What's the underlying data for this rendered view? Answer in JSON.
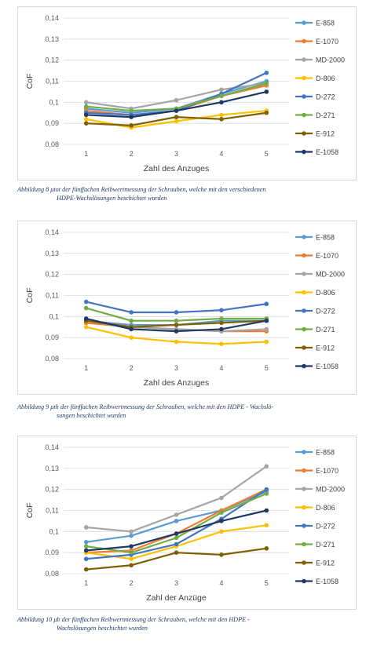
{
  "series_styles": [
    {
      "name": "E-858",
      "color": "#5b9bd5"
    },
    {
      "name": "E-1070",
      "color": "#ed7d31"
    },
    {
      "name": "MD-2000",
      "color": "#a5a5a5"
    },
    {
      "name": "D-806",
      "color": "#ffc000"
    },
    {
      "name": "D-272",
      "color": "#4472c4"
    },
    {
      "name": "D-271",
      "color": "#70ad47"
    },
    {
      "name": "E-912",
      "color": "#7f6000"
    },
    {
      "name": "E-1058",
      "color": "#203864"
    }
  ],
  "chart_data": [
    {
      "type": "line",
      "title": "",
      "xlabel": "Zahl des Anzuges",
      "ylabel": "CoF",
      "x": [
        1,
        2,
        3,
        4,
        5
      ],
      "ylim": [
        0.08,
        0.14
      ],
      "yticks": [
        "0,08",
        "0,09",
        "0,1",
        "0,11",
        "0,12",
        "0,13",
        "0,14"
      ],
      "legend": "right",
      "grid": true,
      "series": [
        {
          "name": "E-858",
          "values": [
            0.097,
            0.095,
            0.097,
            0.104,
            0.11
          ]
        },
        {
          "name": "E-1070",
          "values": [
            0.096,
            0.094,
            0.096,
            0.103,
            0.108
          ]
        },
        {
          "name": "MD-2000",
          "values": [
            0.1,
            0.097,
            0.101,
            0.106,
            0.109
          ]
        },
        {
          "name": "D-806",
          "values": [
            0.092,
            0.088,
            0.091,
            0.094,
            0.096
          ]
        },
        {
          "name": "D-272",
          "values": [
            0.095,
            0.094,
            0.096,
            0.104,
            0.114
          ]
        },
        {
          "name": "D-271",
          "values": [
            0.098,
            0.096,
            0.097,
            0.103,
            0.109
          ]
        },
        {
          "name": "E-912",
          "values": [
            0.09,
            0.089,
            0.093,
            0.092,
            0.095
          ]
        },
        {
          "name": "E-1058",
          "values": [
            0.094,
            0.093,
            0.096,
            0.1,
            0.105
          ]
        }
      ]
    },
    {
      "type": "line",
      "title": "",
      "xlabel": "Zahl des Anzuges",
      "ylabel": "CoF",
      "x": [
        1,
        2,
        3,
        4,
        5
      ],
      "ylim": [
        0.08,
        0.14
      ],
      "yticks": [
        "0,08",
        "0,09",
        "0,1",
        "0,11",
        "0,12",
        "0,13",
        "0,14"
      ],
      "legend": "right",
      "grid": true,
      "series": [
        {
          "name": "E-858",
          "values": [
            0.098,
            0.096,
            0.096,
            0.098,
            0.098
          ]
        },
        {
          "name": "E-1070",
          "values": [
            0.097,
            0.095,
            0.094,
            0.093,
            0.093
          ]
        },
        {
          "name": "MD-2000",
          "values": [
            0.098,
            0.095,
            0.094,
            0.093,
            0.094
          ]
        },
        {
          "name": "D-806",
          "values": [
            0.095,
            0.09,
            0.088,
            0.087,
            0.088
          ]
        },
        {
          "name": "D-272",
          "values": [
            0.107,
            0.102,
            0.102,
            0.103,
            0.106
          ]
        },
        {
          "name": "D-271",
          "values": [
            0.104,
            0.098,
            0.098,
            0.099,
            0.099
          ]
        },
        {
          "name": "E-912",
          "values": [
            0.098,
            0.095,
            0.096,
            0.097,
            0.098
          ]
        },
        {
          "name": "E-1058",
          "values": [
            0.099,
            0.094,
            0.093,
            0.094,
            0.098
          ]
        }
      ]
    },
    {
      "type": "line",
      "title": "",
      "xlabel": "Zahl der Anzüge",
      "ylabel": "CoF",
      "x": [
        1,
        2,
        3,
        4,
        5
      ],
      "ylim": [
        0.08,
        0.14
      ],
      "yticks": [
        "0,08",
        "0,09",
        "0,1",
        "0,11",
        "0,12",
        "0,13",
        "0,14"
      ],
      "legend": "right",
      "grid": true,
      "series": [
        {
          "name": "E-858",
          "values": [
            0.095,
            0.098,
            0.105,
            0.11,
            0.119
          ]
        },
        {
          "name": "E-1070",
          "values": [
            0.09,
            0.091,
            0.099,
            0.11,
            0.12
          ]
        },
        {
          "name": "MD-2000",
          "values": [
            0.102,
            0.1,
            0.108,
            0.116,
            0.131
          ]
        },
        {
          "name": "D-806",
          "values": [
            0.09,
            0.087,
            0.093,
            0.1,
            0.103
          ]
        },
        {
          "name": "D-272",
          "values": [
            0.087,
            0.089,
            0.094,
            0.106,
            0.12
          ]
        },
        {
          "name": "D-271",
          "values": [
            0.093,
            0.09,
            0.097,
            0.109,
            0.118
          ]
        },
        {
          "name": "E-912",
          "values": [
            0.082,
            0.084,
            0.09,
            0.089,
            0.092
          ]
        },
        {
          "name": "E-1058",
          "values": [
            0.091,
            0.093,
            0.099,
            0.105,
            0.11
          ]
        }
      ]
    }
  ],
  "captions": [
    {
      "line1": "Abbildung 8 μtot der fünffachen Reibwertmessung der Schrauben, welche mit den verschiedenen",
      "line2": "HDPE-Wachslösungen beschichtet wurden"
    },
    {
      "line1": "Abbildung 9 μth der fünffachen Reibwertmessung der Schrauben, welche mit den HDPE - Wachslö-",
      "line2": "sungen beschichtet wurden"
    },
    {
      "line1": "Abbildung 10 μb der fünffachen Reibwertmessung der Schrauben, welche mit den HDPE -",
      "line2": "Wachslösungen beschichtet wurden"
    }
  ]
}
